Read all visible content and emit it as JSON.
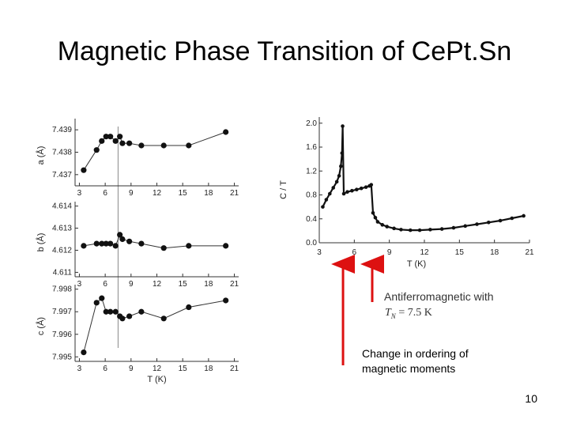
{
  "slide": {
    "title": "Magnetic Phase Transition of CePt.Sn",
    "note_line1": "Change in ordering of",
    "note_line2": "magnetic moments",
    "page_number": "10",
    "arrow_color": "#dd1111"
  },
  "chart_data": [
    {
      "type": "scatter",
      "panel": "a",
      "ylabel": "a (Å)",
      "xlabel": "",
      "x_ticks": [
        "3",
        "6",
        "9",
        "12",
        "15",
        "18",
        "21"
      ],
      "y_ticks": [
        "7.437",
        "7.438",
        "7.439"
      ],
      "xlim": [
        2.5,
        21.5
      ],
      "ylim": [
        7.4365,
        7.4395
      ],
      "vline_x": 7.5,
      "x": [
        3.5,
        5.0,
        5.6,
        6.1,
        6.6,
        7.2,
        7.7,
        8.0,
        8.8,
        10.2,
        12.8,
        15.7,
        20.0
      ],
      "y": [
        7.4372,
        7.4381,
        7.4385,
        7.4387,
        7.4387,
        7.4385,
        7.4387,
        7.4384,
        7.4384,
        7.4383,
        7.4383,
        7.4383,
        7.4389
      ]
    },
    {
      "type": "scatter",
      "panel": "b",
      "ylabel": "b (Å)",
      "xlabel": "",
      "x_ticks": [
        "3",
        "6",
        "9",
        "12",
        "15",
        "18",
        "21"
      ],
      "y_ticks": [
        "4.611",
        "4.612",
        "4.613",
        "4.614"
      ],
      "xlim": [
        2.5,
        21.5
      ],
      "ylim": [
        4.6108,
        4.6142
      ],
      "vline_x": 7.5,
      "x": [
        3.5,
        5.0,
        5.6,
        6.1,
        6.6,
        7.2,
        7.7,
        8.0,
        8.8,
        10.2,
        12.8,
        15.7,
        20.0
      ],
      "y": [
        4.6122,
        4.6123,
        4.6123,
        4.6123,
        4.6123,
        4.6122,
        4.6127,
        4.6125,
        4.6124,
        4.6123,
        4.6121,
        4.6122,
        4.6122
      ]
    },
    {
      "type": "scatter",
      "panel": "c",
      "ylabel": "c (Å)",
      "xlabel": "T (K)",
      "x_ticks": [
        "3",
        "6",
        "9",
        "12",
        "15",
        "18",
        "21"
      ],
      "y_ticks": [
        "7.995",
        "7.996",
        "7.997",
        "7.998"
      ],
      "xlim": [
        2.5,
        21.5
      ],
      "ylim": [
        7.9948,
        7.9982
      ],
      "vline_x": 7.5,
      "x": [
        3.5,
        5.0,
        5.6,
        6.1,
        6.6,
        7.2,
        7.7,
        8.0,
        8.8,
        10.2,
        12.8,
        15.7,
        20.0
      ],
      "y": [
        7.9952,
        7.9974,
        7.9976,
        7.997,
        7.997,
        7.997,
        7.9968,
        7.9967,
        7.9968,
        7.997,
        7.9967,
        7.9972,
        7.9975
      ]
    },
    {
      "type": "scatter",
      "panel": "specific-heat",
      "ylabel": "C / T",
      "xlabel": "T (K)",
      "x_ticks": [
        "3",
        "6",
        "9",
        "12",
        "15",
        "18",
        "21"
      ],
      "y_ticks": [
        "0.0",
        "0.4",
        "0.8",
        "1.2",
        "1.6",
        "2.0"
      ],
      "xlim": [
        3,
        21
      ],
      "ylim": [
        0,
        2.05
      ],
      "transitions_x": [
        5.0,
        7.5
      ],
      "x": [
        3.3,
        3.6,
        3.9,
        4.2,
        4.5,
        4.7,
        4.85,
        4.95,
        5.0,
        5.1,
        5.4,
        5.8,
        6.2,
        6.6,
        7.0,
        7.3,
        7.45,
        7.6,
        7.8,
        8.0,
        8.4,
        8.8,
        9.4,
        10.0,
        10.8,
        11.6,
        12.5,
        13.5,
        14.5,
        15.5,
        16.5,
        17.5,
        18.5,
        19.5,
        20.5
      ],
      "y": [
        0.6,
        0.72,
        0.82,
        0.92,
        1.02,
        1.12,
        1.28,
        1.5,
        1.95,
        0.82,
        0.85,
        0.87,
        0.89,
        0.91,
        0.93,
        0.95,
        0.97,
        0.5,
        0.42,
        0.35,
        0.3,
        0.27,
        0.24,
        0.22,
        0.21,
        0.21,
        0.22,
        0.23,
        0.25,
        0.28,
        0.31,
        0.34,
        0.37,
        0.41,
        0.45
      ]
    }
  ],
  "annotation": {
    "label": "Antiferromagnetic  with",
    "tn_label": "T",
    "tn_sub": "N",
    "tn_value": " =  7.5 K"
  }
}
